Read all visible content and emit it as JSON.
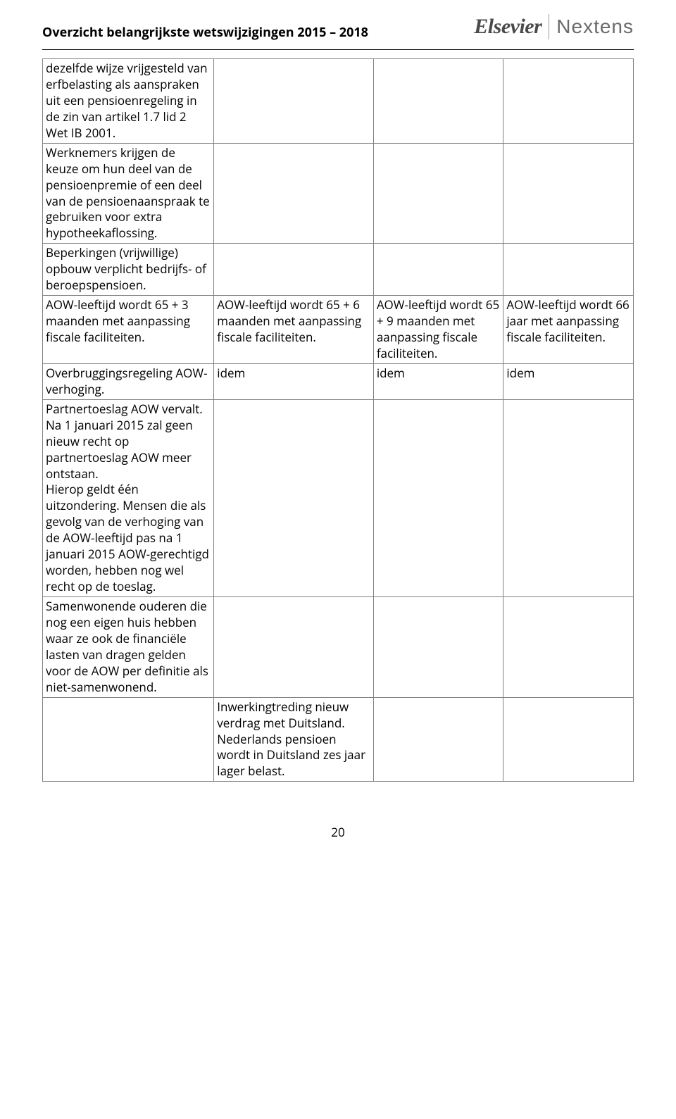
{
  "header": {
    "title": "Overzicht belangrijkste wetswijzigingen 2015 – 2018",
    "brand_left": "Elsevier",
    "brand_right": "Nextens"
  },
  "colors": {
    "text": "#000000",
    "border": "#808080",
    "brand_elsevier": "#4a4a4a",
    "brand_nextens": "#6a6a6a",
    "brand_divider": "#9a9a9a",
    "background": "#ffffff"
  },
  "typography": {
    "body_fontsize": 17,
    "title_fontsize": 18,
    "brand_left_fontsize": 30,
    "brand_right_fontsize": 28
  },
  "table": {
    "column_widths_pct": [
      29,
      27,
      22,
      22
    ],
    "rows": [
      {
        "c1": "dezelfde wijze vrijgesteld van erfbelasting als aanspraken uit een pensioenregeling in de zin van artikel 1.7 lid 2 Wet IB 2001.",
        "c2": "",
        "c3": "",
        "c4": ""
      },
      {
        "c1": "Werknemers krijgen de keuze om hun deel van de pensioenpremie of een deel van de pensioenaanspraak te gebruiken voor extra hypotheekaflossing.",
        "c2": "",
        "c3": "",
        "c4": ""
      },
      {
        "c1": "Beperkingen (vrijwillige) opbouw verplicht bedrijfs- of beroepspensioen.",
        "c2": "",
        "c3": "",
        "c4": ""
      },
      {
        "c1": "AOW-leeftijd wordt 65 + 3 maanden met aanpassing fiscale faciliteiten.",
        "c2": "AOW-leeftijd wordt 65 + 6 maanden met aanpassing fiscale faciliteiten.",
        "c3": "AOW-leeftijd wordt 65 + 9 maanden met aanpassing fiscale faciliteiten.",
        "c4": "AOW-leeftijd wordt 66 jaar met aanpassing fiscale faciliteiten."
      },
      {
        "c1": "Overbruggingsregeling AOW-verhoging.",
        "c2": "idem",
        "c3": "idem",
        "c4": "idem"
      },
      {
        "c1": "Partnertoeslag AOW vervalt. Na 1 januari 2015 zal geen nieuw recht op partnertoeslag AOW meer ontstaan.\nHierop geldt één uitzondering. Mensen die als gevolg van de verhoging van de AOW-leeftijd pas na 1 januari 2015 AOW-gerechtigd worden, hebben nog wel recht op de toeslag.",
        "c2": "",
        "c3": "",
        "c4": ""
      },
      {
        "c1": "Samenwonende ouderen die nog een eigen huis hebben waar ze ook de financiële lasten van dragen gelden voor de AOW per definitie als niet-samenwonend.",
        "c2": "",
        "c3": "",
        "c4": ""
      },
      {
        "c1": "",
        "c2": "Inwerkingtreding nieuw verdrag met Duitsland. Nederlands pensioen wordt in Duitsland zes jaar lager belast.",
        "c3": "",
        "c4": ""
      }
    ]
  },
  "page_number": "20"
}
